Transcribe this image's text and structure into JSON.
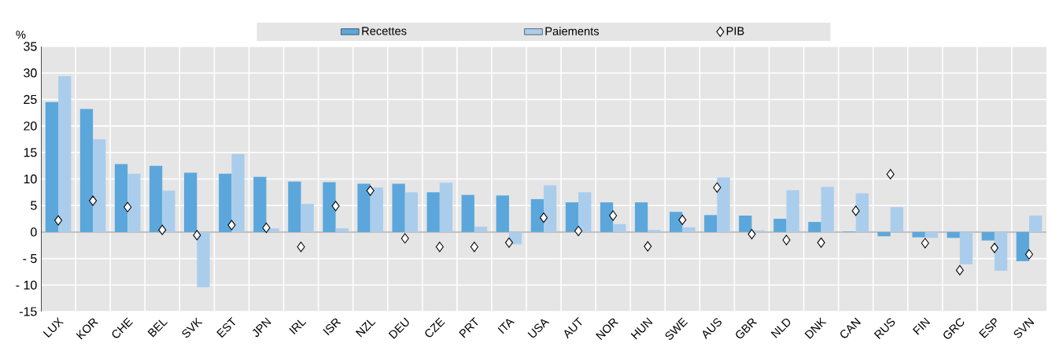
{
  "chart_data": {
    "type": "bar",
    "ylabel": "%",
    "categories": [
      "LUX",
      "KOR",
      "CHE",
      "BEL",
      "SVK",
      "EST",
      "JPN",
      "IRL",
      "ISR",
      "NZL",
      "DEU",
      "CZE",
      "PRT",
      "ITA",
      "USA",
      "AUT",
      "NOR",
      "HUN",
      "SWE",
      "AUS",
      "GBR",
      "NLD",
      "DNK",
      "CAN",
      "RUS",
      "FIN",
      "GRC",
      "ESP",
      "SVN"
    ],
    "series": [
      {
        "name": "Recettes",
        "color": "#5ba7dc",
        "values": [
          24.5,
          23.2,
          12.8,
          12.5,
          11.2,
          11.0,
          10.4,
          9.5,
          9.4,
          9.1,
          9.1,
          7.5,
          7.0,
          6.9,
          6.2,
          5.6,
          5.6,
          5.6,
          3.8,
          3.2,
          3.1,
          2.5,
          1.9,
          0.1,
          -0.8,
          -1.0,
          -1.1,
          -1.6,
          -5.5
        ]
      },
      {
        "name": "Paiements",
        "color": "#abcdec",
        "values": [
          29.4,
          17.5,
          11.0,
          7.8,
          -10.4,
          14.7,
          0.7,
          5.3,
          0.7,
          8.4,
          7.5,
          9.3,
          1.0,
          -2.3,
          8.8,
          7.5,
          1.5,
          0.4,
          0.9,
          10.3,
          0.3,
          7.9,
          8.5,
          7.3,
          4.7,
          -1.1,
          -6.1,
          -7.3,
          3.1
        ]
      },
      {
        "name": "PIB",
        "type": "scatter",
        "marker": "diamond",
        "color": "#ffffff",
        "values": [
          2.2,
          5.9,
          4.7,
          0.4,
          -0.6,
          1.3,
          0.8,
          -2.8,
          4.9,
          7.8,
          -1.2,
          -2.8,
          -2.8,
          -2.0,
          2.7,
          0.2,
          3.1,
          -2.7,
          2.3,
          8.4,
          -0.4,
          -1.5,
          -2.0,
          4.0,
          10.9,
          -2.1,
          -7.2,
          -3.0,
          -4.2
        ]
      }
    ],
    "ylim": [
      -15,
      35
    ],
    "yticks": [
      {
        "value": -15,
        "label": "-15"
      },
      {
        "value": -10,
        "label": "- 10"
      },
      {
        "value": -5,
        "label": "- 5"
      },
      0,
      5,
      10,
      15,
      20,
      25,
      30,
      35
    ],
    "grid": true,
    "legend": "top"
  }
}
